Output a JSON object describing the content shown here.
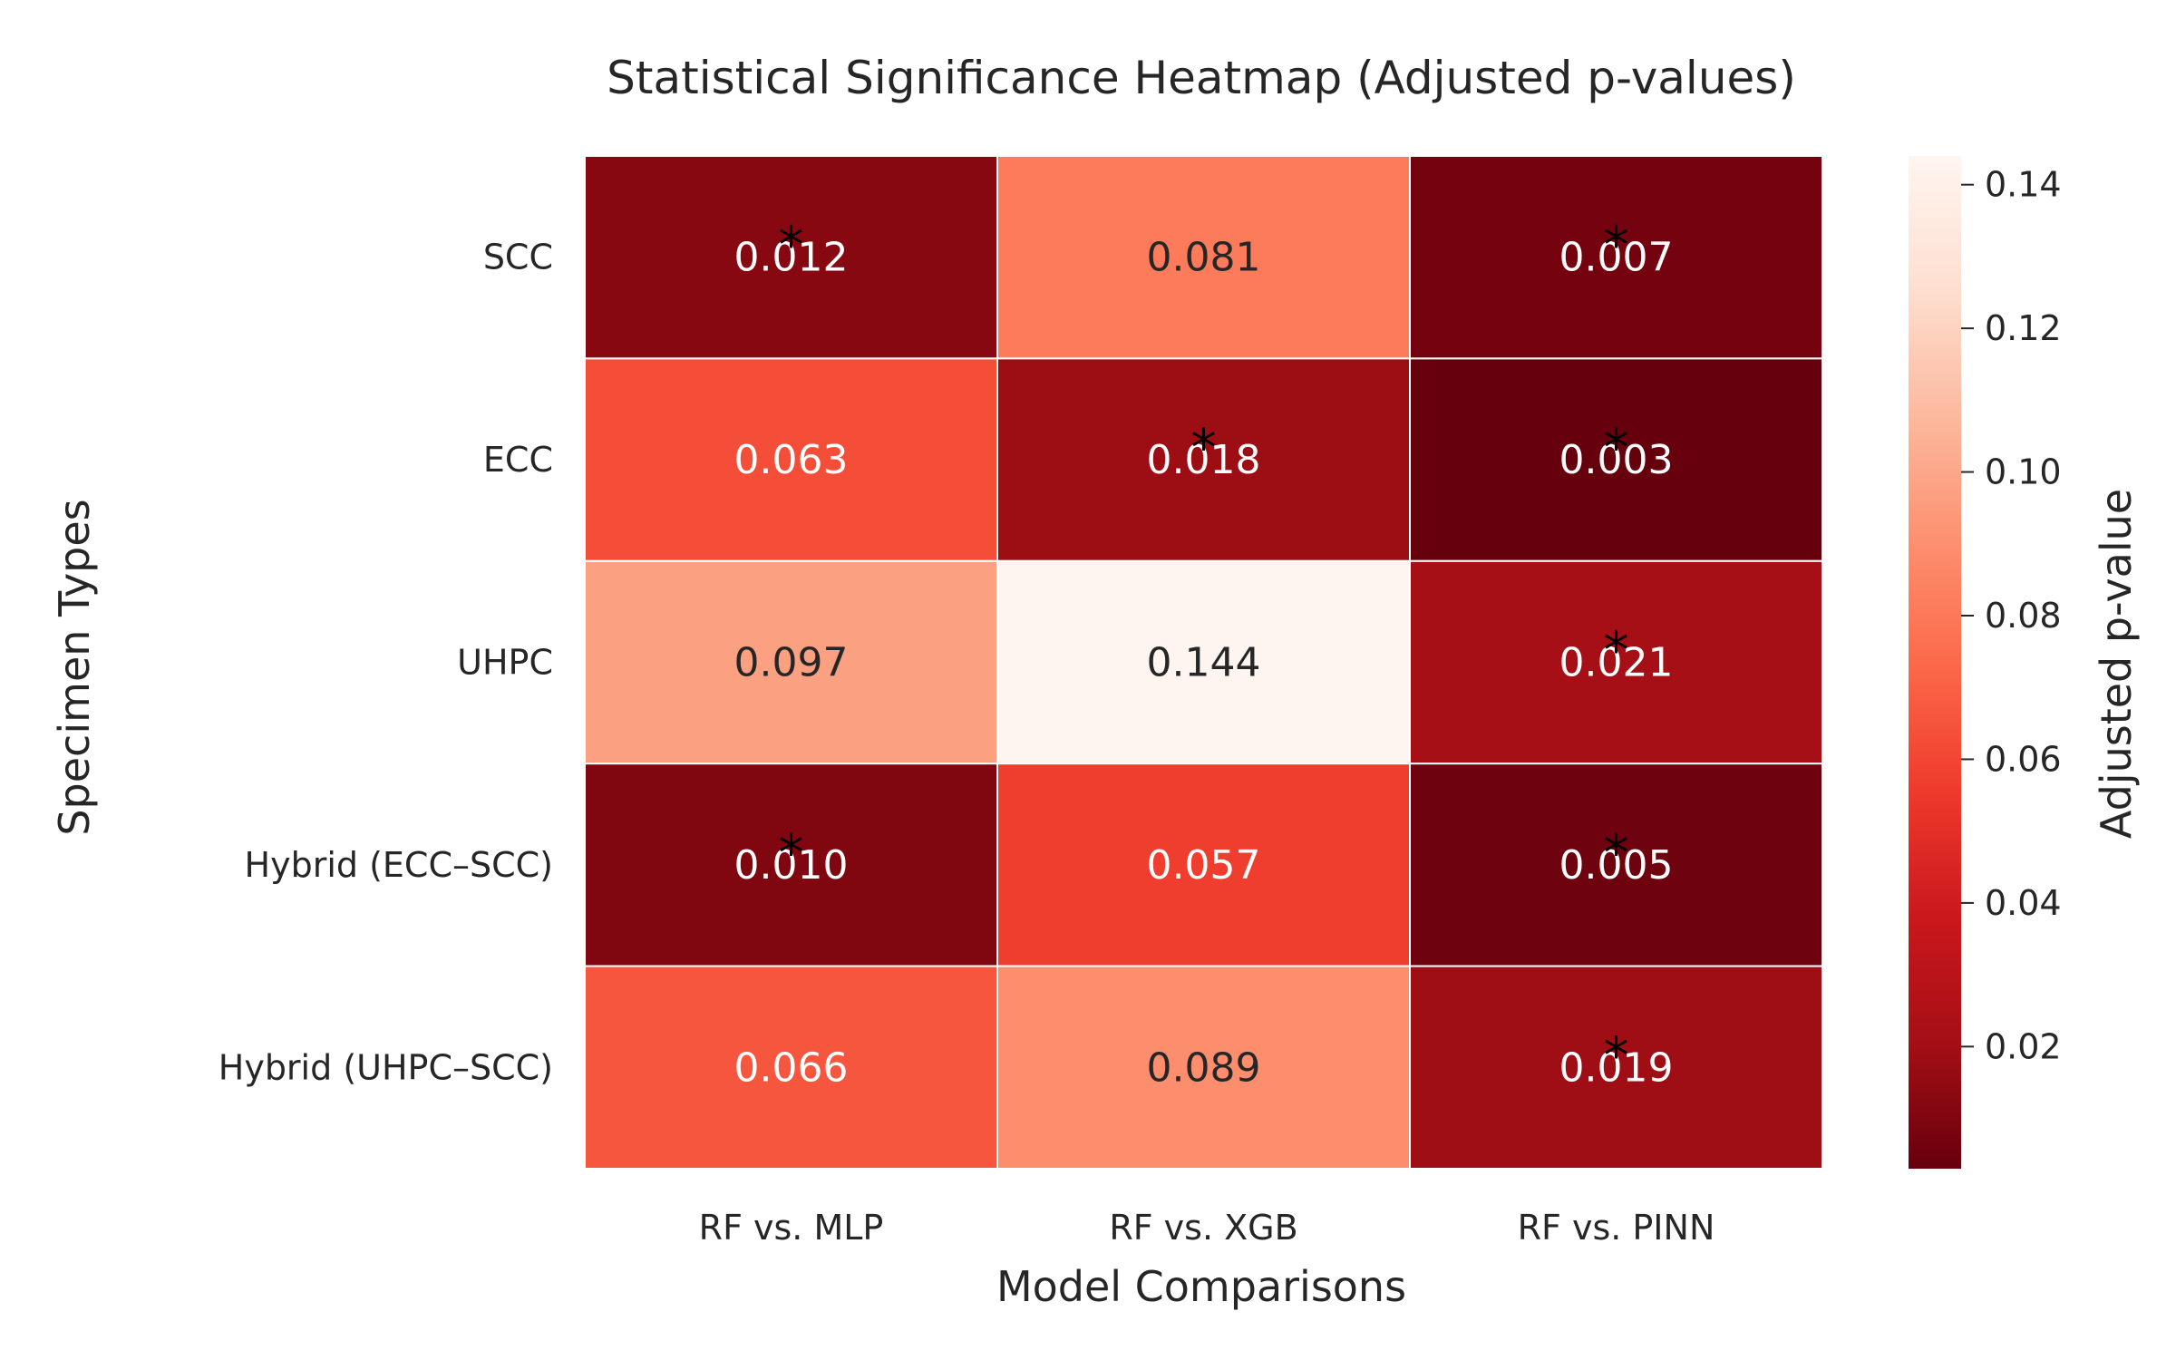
{
  "chart_data": {
    "type": "heatmap",
    "title": "Statistical Significance Heatmap (Adjusted p-values)",
    "xlabel": "Model Comparisons",
    "ylabel": "Specimen Types",
    "x_categories": [
      "RF vs. MLP",
      "RF vs. XGB",
      "RF vs. PINN"
    ],
    "y_categories": [
      "SCC",
      "ECC",
      "UHPC",
      "Hybrid (ECC–SCC)",
      "Hybrid (UHPC–SCC)"
    ],
    "values": [
      [
        0.012,
        0.081,
        0.007
      ],
      [
        0.063,
        0.018,
        0.003
      ],
      [
        0.097,
        0.144,
        0.021
      ],
      [
        0.01,
        0.057,
        0.005
      ],
      [
        0.066,
        0.089,
        0.019
      ]
    ],
    "cell_labels": [
      [
        "0.012",
        "0.081",
        "0.007"
      ],
      [
        "0.063",
        "0.018",
        "0.003"
      ],
      [
        "0.097",
        "0.144",
        "0.021"
      ],
      [
        "0.010",
        "0.057",
        "0.005"
      ],
      [
        "0.066",
        "0.089",
        "0.019"
      ]
    ],
    "significance_marker": "*",
    "significant": [
      [
        true,
        false,
        true
      ],
      [
        false,
        true,
        true
      ],
      [
        false,
        false,
        true
      ],
      [
        true,
        false,
        true
      ],
      [
        false,
        false,
        true
      ]
    ],
    "colorbar": {
      "label": "Adjusted p-value",
      "colormap": "Reds_r",
      "range": [
        0.003,
        0.144
      ],
      "ticks": [
        "0.02",
        "0.04",
        "0.06",
        "0.08",
        "0.10",
        "0.12",
        "0.14"
      ],
      "tick_values": [
        0.02,
        0.04,
        0.06,
        0.08,
        0.1,
        0.12,
        0.14
      ]
    },
    "grid": false
  }
}
